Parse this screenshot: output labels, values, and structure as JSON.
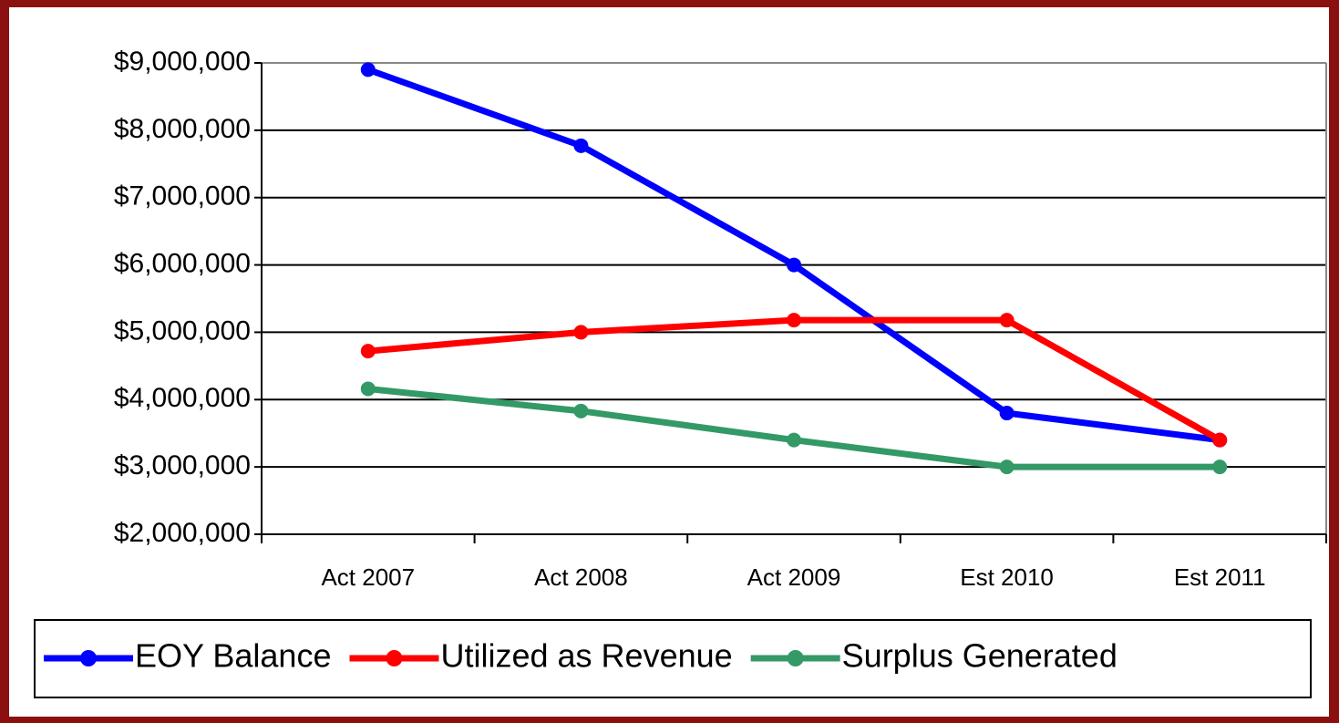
{
  "chart_data": {
    "type": "line",
    "categories": [
      "Act 2007",
      "Act 2008",
      "Act 2009",
      "Est 2010",
      "Est 2011"
    ],
    "series": [
      {
        "name": "EOY Balance",
        "color": "#0000ff",
        "values": [
          8900000,
          7770000,
          6000000,
          3800000,
          3400000
        ]
      },
      {
        "name": "Utilized as Revenue",
        "color": "#ff0000",
        "values": [
          4720000,
          5000000,
          5180000,
          5180000,
          3400000
        ]
      },
      {
        "name": "Surplus Generated",
        "color": "#339966",
        "values": [
          4160000,
          3830000,
          3400000,
          3000000,
          3000000
        ]
      }
    ],
    "ylim": [
      2000000,
      9000000
    ],
    "yticks": [
      {
        "value": 2000000,
        "label": "$2,000,000"
      },
      {
        "value": 3000000,
        "label": "$3,000,000"
      },
      {
        "value": 4000000,
        "label": "$4,000,000"
      },
      {
        "value": 5000000,
        "label": "$5,000,000"
      },
      {
        "value": 6000000,
        "label": "$6,000,000"
      },
      {
        "value": 7000000,
        "label": "$7,000,000"
      },
      {
        "value": 8000000,
        "label": "$8,000,000"
      },
      {
        "value": 9000000,
        "label": "$9,000,000"
      }
    ],
    "grid": true,
    "legend": "bottom"
  }
}
